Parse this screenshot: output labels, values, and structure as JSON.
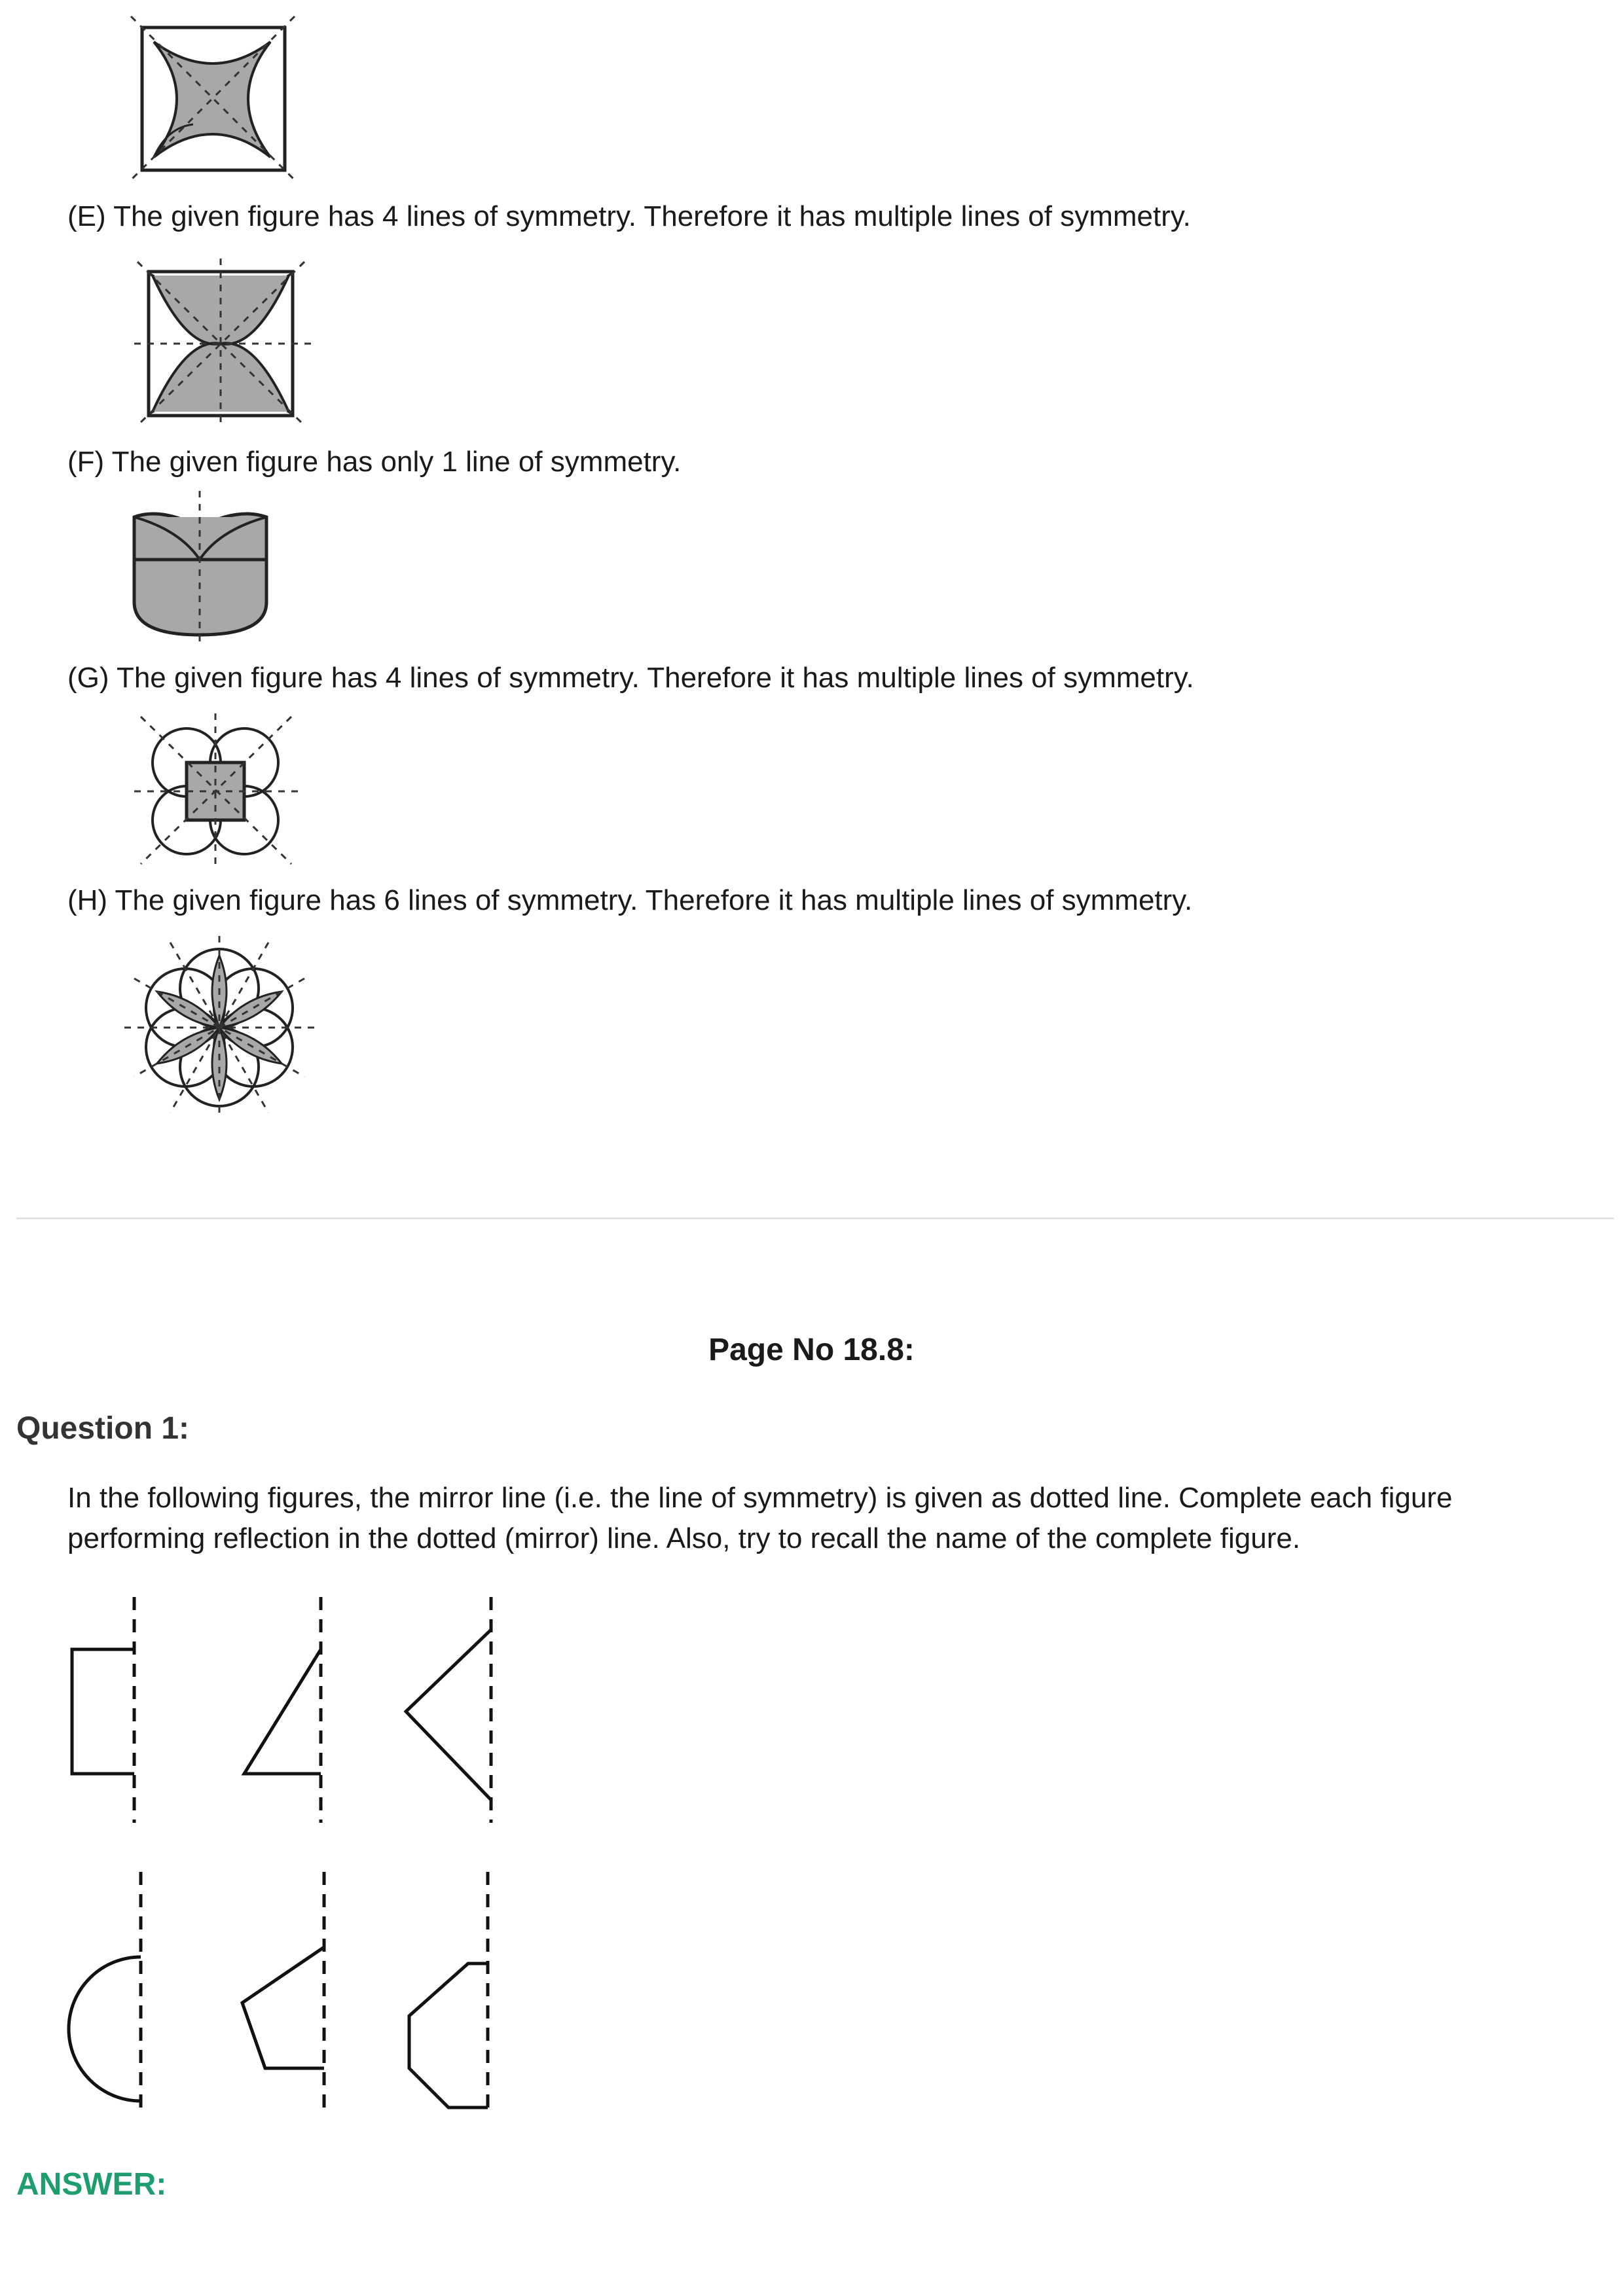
{
  "items": [
    {
      "id": "E",
      "text": "(E) The given figure has 4 lines of symmetry. Therefore it has multiple lines of symmetry."
    },
    {
      "id": "F",
      "text": "(F) The given figure has only 1 line of symmetry."
    },
    {
      "id": "G",
      "text": "(G) The given figure has 4 lines of symmetry. Therefore it has multiple lines of symmetry."
    },
    {
      "id": "H",
      "text": "(H) The given figure has 6 lines of symmetry. Therefore it has multiple lines of symmetry."
    }
  ],
  "page_heading": "Page No 18.8:",
  "question": {
    "title": "Question 1:",
    "lines": [
      "In the following figures, the mirror line (i.e. the line of symmetry) is given as dotted line. Complete each figure",
      "performing reflection in the dotted (mirror) line. Also, try to recall the name of the complete figure."
    ]
  },
  "answer_label": "ANSWER:",
  "colors": {
    "fill_gray": "#a8a8a8",
    "answer_green": "#1e9e6e",
    "separator": "#e3e3e3"
  }
}
